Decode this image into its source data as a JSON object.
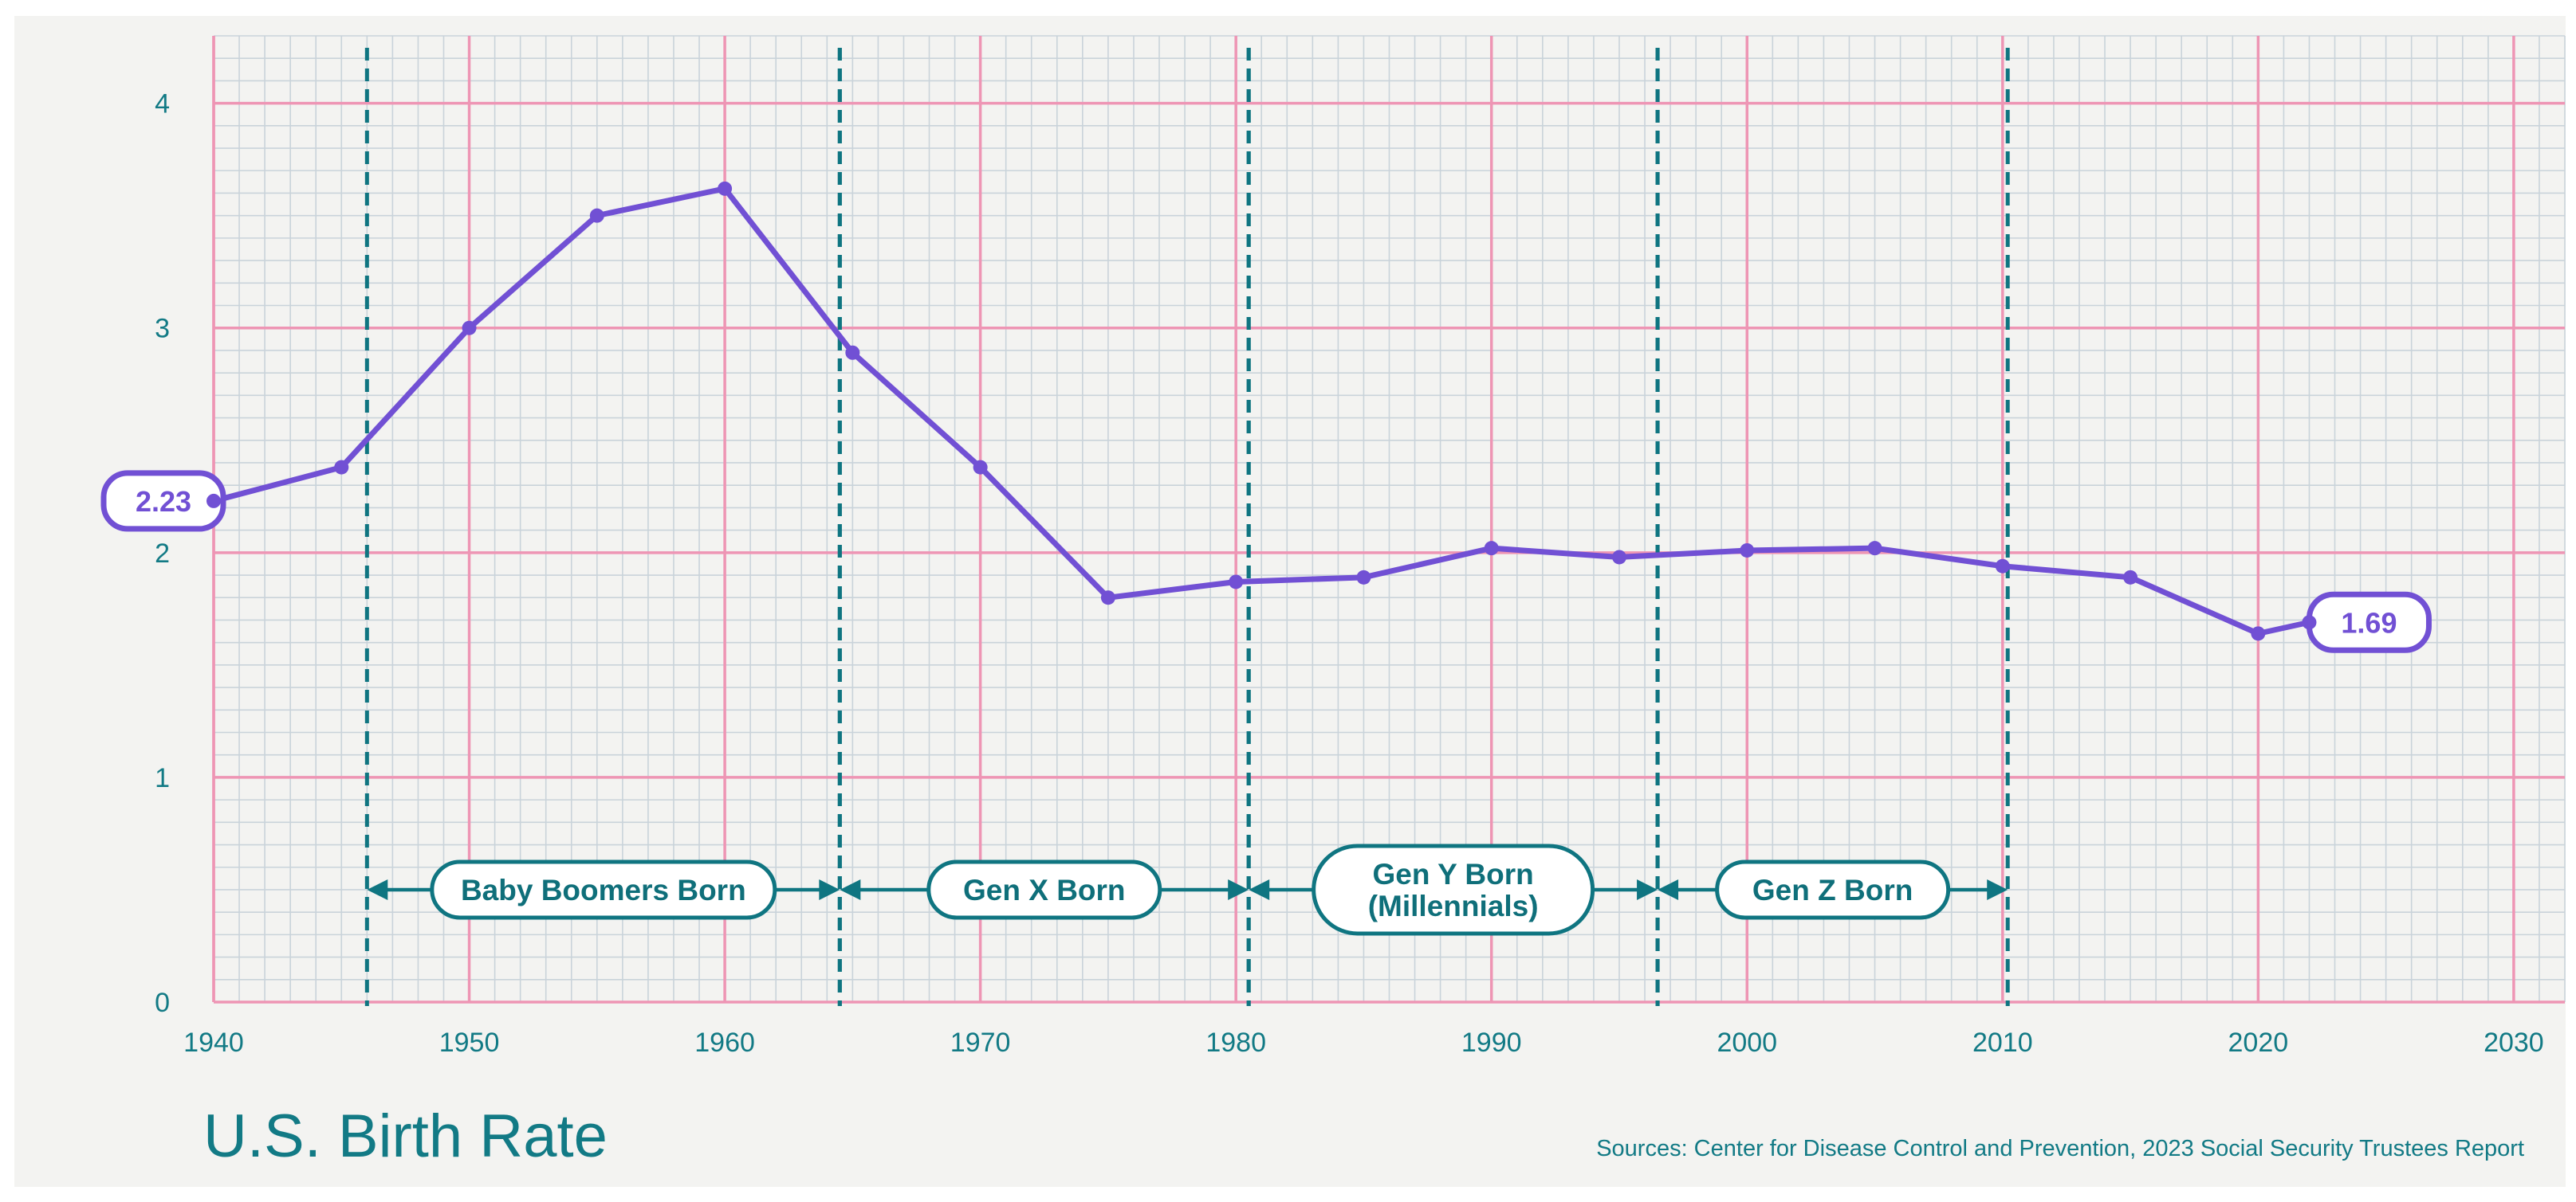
{
  "chart_data": {
    "type": "line",
    "title": "U.S. Birth Rate",
    "source": "Sources: Center for Disease Control and Prevention,  2023 Social Security Trustees Report",
    "xlabel": "",
    "ylabel": "",
    "xlim": [
      1940,
      2032
    ],
    "ylim": [
      0,
      4.3
    ],
    "x_ticks": [
      1940,
      1950,
      1960,
      1970,
      1980,
      1990,
      2000,
      2010,
      2020,
      2030
    ],
    "y_ticks": [
      0,
      1,
      2,
      3,
      4
    ],
    "grid": true,
    "series": [
      {
        "color": "#7150d4",
        "x": [
          1940,
          1945,
          1950,
          1955,
          1960,
          1965,
          1970,
          1975,
          1980,
          1985,
          1990,
          1995,
          2000,
          2005,
          2010,
          2015,
          2020,
          2022
        ],
        "y": [
          2.23,
          2.38,
          3.0,
          3.5,
          3.62,
          2.89,
          2.38,
          1.8,
          1.87,
          1.89,
          2.02,
          1.98,
          2.01,
          2.02,
          1.94,
          1.89,
          1.64,
          1.69
        ]
      }
    ],
    "callouts": [
      {
        "x": 1940,
        "y": 2.23,
        "label": "2.23"
      },
      {
        "x": 2022,
        "y": 1.69,
        "label": "1.69"
      }
    ],
    "generations": [
      {
        "label": [
          "Baby Boomers Born"
        ],
        "start": 1946,
        "end": 1964.5
      },
      {
        "label": [
          "Gen X Born"
        ],
        "start": 1964.5,
        "end": 1980.5
      },
      {
        "label": [
          "Gen Y Born",
          "(Millennials)"
        ],
        "start": 1980.5,
        "end": 1996.5
      },
      {
        "label": [
          "Gen Z Born"
        ],
        "start": 1996.5,
        "end": 2010.2
      }
    ],
    "colors": {
      "line": "#7150d4",
      "accent": "#0f7581",
      "major_grid": "#ee95b4",
      "minor_grid": "#c9d3da",
      "paper": "#f3f3f1"
    }
  }
}
